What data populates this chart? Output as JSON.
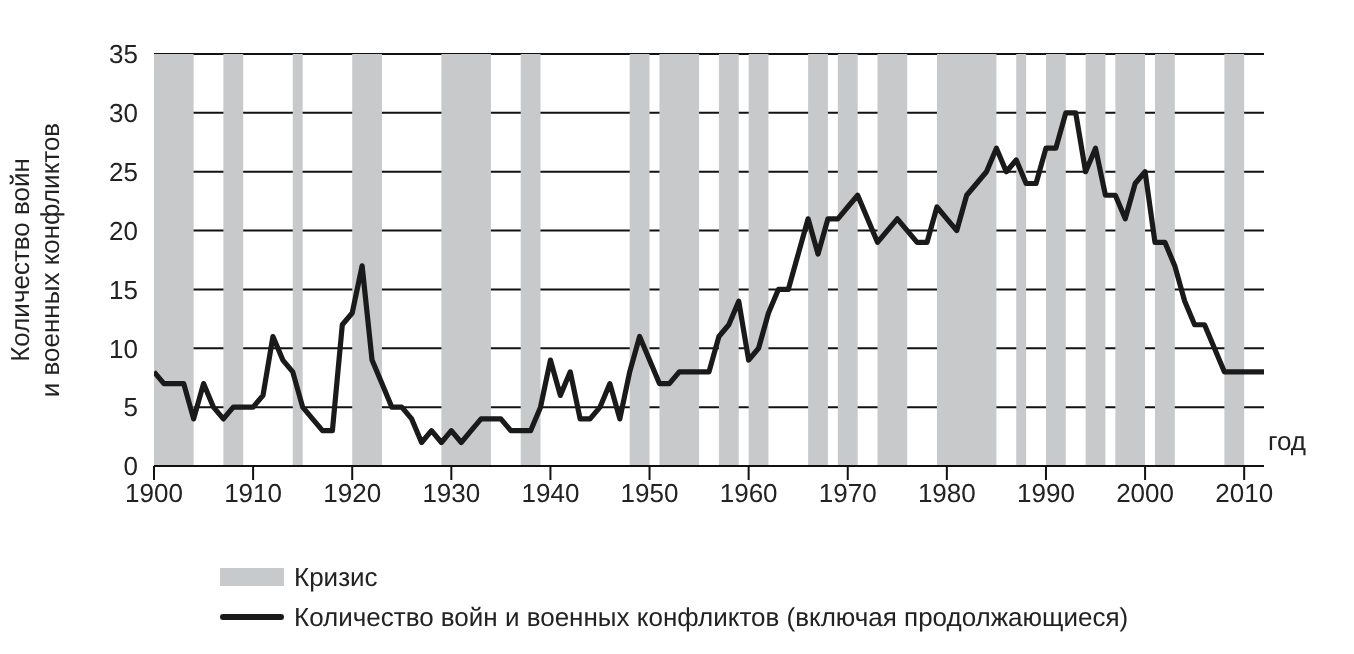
{
  "chart_data": {
    "type": "line",
    "xlabel": "год",
    "ylabel": "Количество войн\nи военных конфликтов",
    "x": [
      1900,
      1901,
      1902,
      1903,
      1904,
      1905,
      1906,
      1907,
      1908,
      1909,
      1910,
      1911,
      1912,
      1913,
      1914,
      1915,
      1916,
      1917,
      1918,
      1919,
      1920,
      1921,
      1922,
      1923,
      1924,
      1925,
      1926,
      1927,
      1928,
      1929,
      1930,
      1931,
      1932,
      1933,
      1934,
      1935,
      1936,
      1937,
      1938,
      1939,
      1940,
      1941,
      1942,
      1943,
      1944,
      1945,
      1946,
      1947,
      1948,
      1949,
      1950,
      1951,
      1952,
      1953,
      1954,
      1955,
      1956,
      1957,
      1958,
      1959,
      1960,
      1961,
      1962,
      1963,
      1964,
      1965,
      1966,
      1967,
      1968,
      1969,
      1970,
      1971,
      1972,
      1973,
      1974,
      1975,
      1976,
      1977,
      1978,
      1979,
      1980,
      1981,
      1982,
      1983,
      1984,
      1985,
      1986,
      1987,
      1988,
      1989,
      1990,
      1991,
      1992,
      1993,
      1994,
      1995,
      1996,
      1997,
      1998,
      1999,
      2000,
      2001,
      2002,
      2003,
      2004,
      2005,
      2006,
      2007,
      2008,
      2009,
      2010,
      2011,
      2012
    ],
    "series": [
      {
        "name": "Количество войн и военных конфликтов (включая продолжающиеся)",
        "color": "#1a1a1a",
        "values": [
          8,
          7,
          7,
          7,
          4,
          7,
          5,
          4,
          5,
          5,
          5,
          6,
          11,
          9,
          8,
          5,
          4,
          3,
          3,
          12,
          13,
          17,
          9,
          7,
          5,
          5,
          4,
          2,
          3,
          2,
          3,
          2,
          3,
          4,
          4,
          4,
          3,
          3,
          3,
          5,
          9,
          6,
          8,
          4,
          4,
          5,
          7,
          4,
          8,
          11,
          9,
          7,
          7,
          8,
          8,
          8,
          8,
          11,
          12,
          14,
          9,
          10,
          13,
          15,
          15,
          18,
          21,
          18,
          21,
          21,
          22,
          23,
          21,
          19,
          20,
          21,
          20,
          19,
          19,
          22,
          21,
          20,
          23,
          24,
          25,
          27,
          25,
          26,
          24,
          24,
          27,
          27,
          30,
          30,
          25,
          27,
          23,
          23,
          21,
          24,
          25,
          19,
          19,
          17,
          14,
          12,
          12,
          10,
          8,
          8,
          8,
          8,
          8
        ]
      }
    ],
    "bands": [
      {
        "axis": "x",
        "from": 1900,
        "to": 1904,
        "label": "Кризис",
        "color": "#c8c9cb"
      },
      {
        "axis": "x",
        "from": 1907,
        "to": 1909,
        "color": "#c8c9cb"
      },
      {
        "axis": "x",
        "from": 1914,
        "to": 1915,
        "color": "#c8c9cb"
      },
      {
        "axis": "x",
        "from": 1920,
        "to": 1923,
        "color": "#c8c9cb"
      },
      {
        "axis": "x",
        "from": 1929,
        "to": 1934,
        "color": "#c8c9cb"
      },
      {
        "axis": "x",
        "from": 1937,
        "to": 1939,
        "color": "#c8c9cb"
      },
      {
        "axis": "x",
        "from": 1948,
        "to": 1950,
        "color": "#c8c9cb"
      },
      {
        "axis": "x",
        "from": 1951,
        "to": 1955,
        "color": "#c8c9cb"
      },
      {
        "axis": "x",
        "from": 1957,
        "to": 1959,
        "color": "#c8c9cb"
      },
      {
        "axis": "x",
        "from": 1960,
        "to": 1962,
        "color": "#c8c9cb"
      },
      {
        "axis": "x",
        "from": 1966,
        "to": 1968,
        "color": "#c8c9cb"
      },
      {
        "axis": "x",
        "from": 1969,
        "to": 1971,
        "color": "#c8c9cb"
      },
      {
        "axis": "x",
        "from": 1973,
        "to": 1976,
        "color": "#c8c9cb"
      },
      {
        "axis": "x",
        "from": 1979,
        "to": 1985,
        "color": "#c8c9cb"
      },
      {
        "axis": "x",
        "from": 1987,
        "to": 1988,
        "color": "#c8c9cb"
      },
      {
        "axis": "x",
        "from": 1990,
        "to": 1992,
        "color": "#c8c9cb"
      },
      {
        "axis": "x",
        "from": 1994,
        "to": 1996,
        "color": "#c8c9cb"
      },
      {
        "axis": "x",
        "from": 1997,
        "to": 2000,
        "color": "#c8c9cb"
      },
      {
        "axis": "x",
        "from": 2001,
        "to": 2003,
        "color": "#c8c9cb"
      },
      {
        "axis": "x",
        "from": 2008,
        "to": 2010,
        "color": "#c8c9cb"
      }
    ],
    "xlim": [
      1900,
      2012
    ],
    "xticks": [
      1900,
      1910,
      1920,
      1930,
      1940,
      1950,
      1960,
      1970,
      1980,
      1990,
      2000,
      2010
    ],
    "ylim": [
      0,
      35
    ],
    "yticks": [
      0,
      5,
      10,
      15,
      20,
      25,
      30,
      35
    ],
    "grid": "y",
    "legend": "bottom",
    "marker": "none",
    "line_style": "solid"
  }
}
